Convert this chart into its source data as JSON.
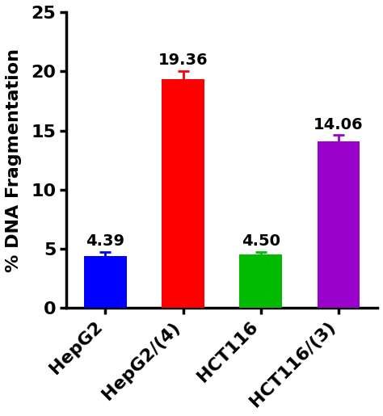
{
  "categories": [
    "HepG2",
    "HepG2/(4)",
    "HCT116",
    "HCT116/(3)"
  ],
  "values": [
    4.39,
    19.36,
    4.5,
    14.06
  ],
  "errors": [
    0.35,
    0.65,
    0.25,
    0.55
  ],
  "bar_colors": [
    "#0000ff",
    "#ff0000",
    "#00bb00",
    "#9900cc"
  ],
  "error_colors": [
    "#0000ff",
    "#ff0000",
    "#00bb00",
    "#9900cc"
  ],
  "bar_labels": [
    "4.39",
    "19.36",
    "4.50",
    "14.06"
  ],
  "ylabel": "% DNA Fragmentation",
  "ylim": [
    0,
    25
  ],
  "yticks": [
    0,
    5,
    10,
    15,
    20,
    25
  ],
  "ylabel_fontsize": 16,
  "tick_fontsize": 16,
  "value_fontsize": 14,
  "bar_width": 0.55,
  "background_color": "#ffffff",
  "spine_color": "#000000",
  "capsize": 5
}
